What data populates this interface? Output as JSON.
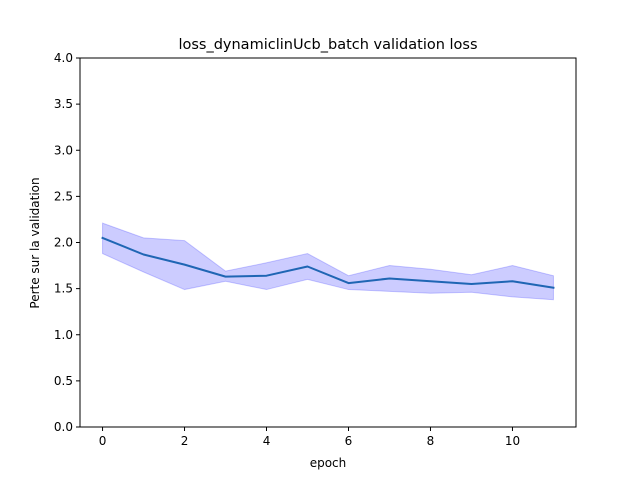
{
  "chart_data": {
    "type": "line",
    "title": "loss_dynamiclinUcb_batch validation loss",
    "xlabel": "epoch",
    "ylabel": "Perte sur la validation",
    "xlim": [
      -0.55,
      11.55
    ],
    "ylim": [
      0.0,
      4.0
    ],
    "xticks": [
      0,
      2,
      4,
      6,
      8,
      10
    ],
    "xtick_labels": [
      "0",
      "2",
      "4",
      "6",
      "8",
      "10"
    ],
    "yticks": [
      0.0,
      0.5,
      1.0,
      1.5,
      2.0,
      2.5,
      3.0,
      3.5,
      4.0
    ],
    "ytick_labels": [
      "0.0",
      "0.5",
      "1.0",
      "1.5",
      "2.0",
      "2.5",
      "3.0",
      "3.5",
      "4.0"
    ],
    "grid": false,
    "x": [
      0,
      1,
      2,
      3,
      4,
      5,
      6,
      7,
      8,
      9,
      10,
      11
    ],
    "series": [
      {
        "values": [
          2.05,
          1.87,
          1.76,
          1.63,
          1.64,
          1.74,
          1.56,
          1.61,
          1.58,
          1.55,
          1.58,
          1.51
        ],
        "lower": [
          1.88,
          1.68,
          1.49,
          1.58,
          1.49,
          1.6,
          1.49,
          1.47,
          1.45,
          1.46,
          1.41,
          1.38
        ],
        "upper": [
          2.21,
          2.05,
          2.02,
          1.69,
          1.78,
          1.88,
          1.64,
          1.75,
          1.71,
          1.65,
          1.75,
          1.64
        ],
        "line_color": "#1f66b4",
        "band_color": "#0000ff"
      }
    ]
  }
}
